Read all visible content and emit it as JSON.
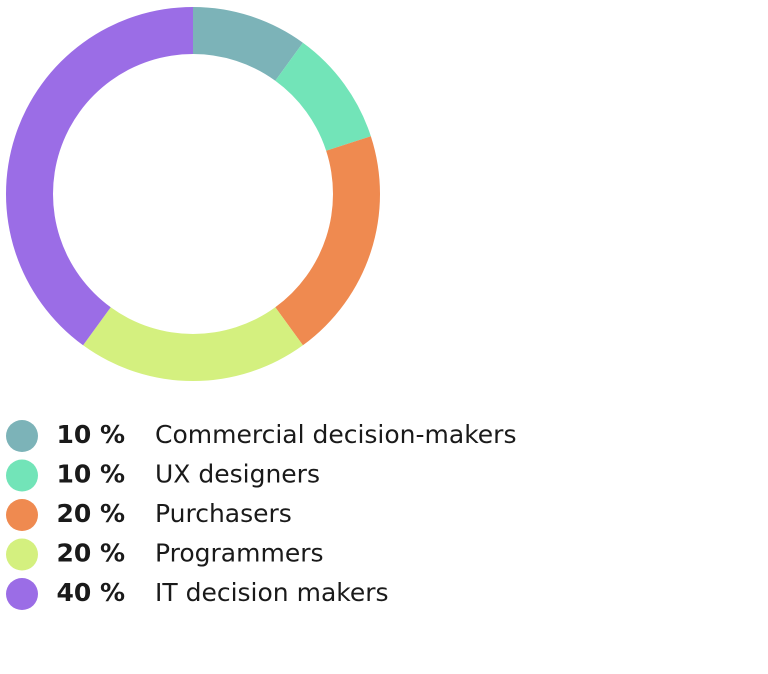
{
  "chart_data": {
    "type": "donut",
    "categories": [
      "Commercial decision-makers",
      "UX designers",
      "Purchasers",
      "Programmers",
      "IT decision makers"
    ],
    "values": [
      10,
      10,
      20,
      20,
      40
    ],
    "value_labels": [
      "10 %",
      "10 %",
      "20 %",
      "20 %",
      "40 %"
    ],
    "colors": [
      "#7cb3b8",
      "#72e4b8",
      "#ef8a50",
      "#d4f07f",
      "#9b6de6"
    ]
  }
}
